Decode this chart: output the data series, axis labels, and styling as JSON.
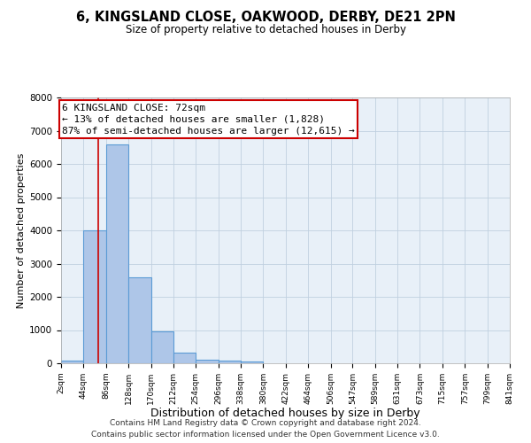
{
  "title": "6, KINGSLAND CLOSE, OAKWOOD, DERBY, DE21 2PN",
  "subtitle": "Size of property relative to detached houses in Derby",
  "xlabel": "Distribution of detached houses by size in Derby",
  "ylabel": "Number of detached properties",
  "bin_edges": [
    2,
    44,
    86,
    128,
    170,
    212,
    254,
    296,
    338,
    380,
    422,
    464,
    506,
    547,
    589,
    631,
    673,
    715,
    757,
    799,
    841
  ],
  "bar_heights": [
    75,
    4000,
    6600,
    2600,
    960,
    310,
    120,
    75,
    50,
    0,
    0,
    0,
    0,
    0,
    0,
    0,
    0,
    0,
    0,
    0
  ],
  "bar_color": "#aec6e8",
  "bar_edgecolor": "#5b9bd5",
  "bar_linewidth": 0.8,
  "grid_color": "#c0d0e0",
  "background_color": "#e8f0f8",
  "vline_x": 72,
  "vline_color": "#cc0000",
  "vline_linewidth": 1.2,
  "annotation_title": "6 KINGSLAND CLOSE: 72sqm",
  "annotation_line1": "← 13% of detached houses are smaller (1,828)",
  "annotation_line2": "87% of semi-detached houses are larger (12,615) →",
  "annotation_box_facecolor": "#ffffff",
  "annotation_box_edgecolor": "#cc0000",
  "annotation_fontsize": 8,
  "ylim": [
    0,
    8000
  ],
  "tick_labels": [
    "2sqm",
    "44sqm",
    "86sqm",
    "128sqm",
    "170sqm",
    "212sqm",
    "254sqm",
    "296sqm",
    "338sqm",
    "380sqm",
    "422sqm",
    "464sqm",
    "506sqm",
    "547sqm",
    "589sqm",
    "631sqm",
    "673sqm",
    "715sqm",
    "757sqm",
    "799sqm",
    "841sqm"
  ],
  "footer1": "Contains HM Land Registry data © Crown copyright and database right 2024.",
  "footer2": "Contains public sector information licensed under the Open Government Licence v3.0."
}
